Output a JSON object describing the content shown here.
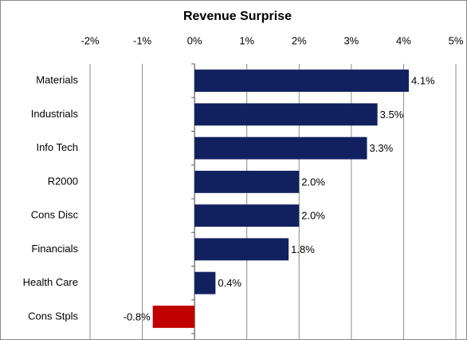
{
  "chart_data": {
    "type": "barh",
    "title": "Revenue Surprise",
    "categories": [
      "Materials",
      "Industrials",
      "Info Tech",
      "R2000",
      "Cons Disc",
      "Financials",
      "Health Care",
      "Cons Stpls"
    ],
    "values": [
      4.1,
      3.5,
      3.3,
      2.0,
      2.0,
      1.8,
      0.4,
      -0.8
    ],
    "value_labels": [
      "4.1%",
      "3.5%",
      "3.3%",
      "2.0%",
      "2.0%",
      "1.8%",
      "0.4%",
      "-0.8%"
    ],
    "colors": [
      "#112160",
      "#112160",
      "#112160",
      "#112160",
      "#112160",
      "#112160",
      "#112160",
      "#c00000"
    ],
    "xlim": [
      -2,
      5
    ],
    "xticks": [
      {
        "value": -2,
        "label": "-2%"
      },
      {
        "value": -1,
        "label": "-1%"
      },
      {
        "value": 0,
        "label": "0%"
      },
      {
        "value": 1,
        "label": "1%"
      },
      {
        "value": 2,
        "label": "2%"
      },
      {
        "value": 3,
        "label": "3%"
      },
      {
        "value": 4,
        "label": "4%"
      },
      {
        "value": 5,
        "label": "5%"
      }
    ],
    "grid": true
  }
}
